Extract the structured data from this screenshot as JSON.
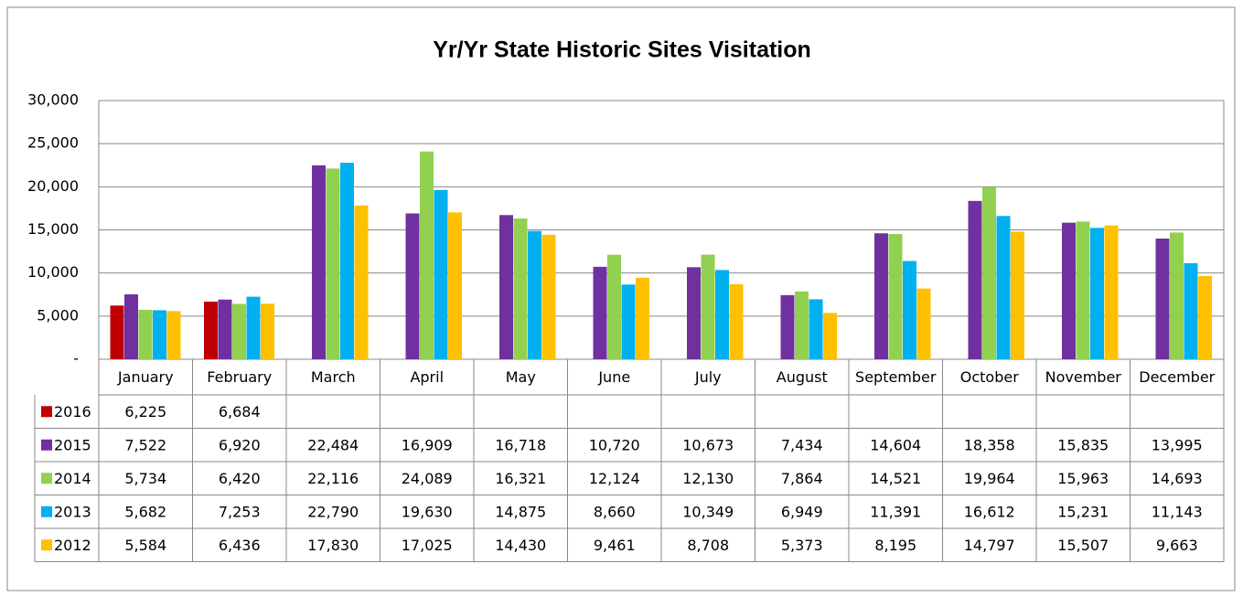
{
  "chart_data": {
    "type": "bar",
    "title": "Yr/Yr State Historic Sites Visitation",
    "categories": [
      "January",
      "February",
      "March",
      "April",
      "May",
      "June",
      "July",
      "August",
      "September",
      "October",
      "November",
      "December"
    ],
    "series": [
      {
        "name": "2016",
        "color": "#c00000",
        "values": [
          6225,
          6684,
          null,
          null,
          null,
          null,
          null,
          null,
          null,
          null,
          null,
          null
        ],
        "value_labels": [
          "6,225",
          "6,684",
          null,
          null,
          null,
          null,
          null,
          null,
          null,
          null,
          null,
          null
        ]
      },
      {
        "name": "2015",
        "color": "#7030a0",
        "values": [
          7522,
          6920,
          22484,
          16909,
          16718,
          10720,
          10673,
          7434,
          14604,
          18358,
          15835,
          13995
        ],
        "value_labels": [
          "7,522",
          "6,920",
          "22,484",
          "16,909",
          "16,718",
          "10,720",
          "10,673",
          "7,434",
          "14,604",
          "18,358",
          "15,835",
          "13,995"
        ]
      },
      {
        "name": "2014",
        "color": "#92d050",
        "values": [
          5734,
          6420,
          22116,
          24089,
          16321,
          12124,
          12130,
          7864,
          14521,
          19964,
          15963,
          14693
        ],
        "value_labels": [
          "5,734",
          "6,420",
          "22,116",
          "24,089",
          "16,321",
          "12,124",
          "12,130",
          "7,864",
          "14,521",
          "19,964",
          "15,963",
          "14,693"
        ]
      },
      {
        "name": "2013",
        "color": "#00b0f0",
        "values": [
          5682,
          7253,
          22790,
          19630,
          14875,
          8660,
          10349,
          6949,
          11391,
          16612,
          15231,
          11143
        ],
        "value_labels": [
          "5,682",
          "7,253",
          "22,790",
          "19,630",
          "14,875",
          "8,660",
          "10,349",
          "6,949",
          "11,391",
          "16,612",
          "15,231",
          "11,143"
        ]
      },
      {
        "name": "2012",
        "color": "#ffc000",
        "values": [
          5584,
          6436,
          17830,
          17025,
          14430,
          9461,
          8708,
          5373,
          8195,
          14797,
          15507,
          9663
        ],
        "value_labels": [
          "5,584",
          "6,436",
          "17,830",
          "17,025",
          "14,430",
          "9,461",
          "8,708",
          "5,373",
          "8,195",
          "14,797",
          "15,507",
          "9,663"
        ]
      }
    ],
    "ylim": [
      0,
      30000
    ],
    "yticks": [
      {
        "value": 0,
        "label": "-"
      },
      {
        "value": 5000,
        "label": "5,000"
      },
      {
        "value": 10000,
        "label": "10,000"
      },
      {
        "value": 15000,
        "label": "15,000"
      },
      {
        "value": 20000,
        "label": "20,000"
      },
      {
        "value": 25000,
        "label": "25,000"
      },
      {
        "value": 30000,
        "label": "30,000"
      }
    ],
    "grid": true
  }
}
